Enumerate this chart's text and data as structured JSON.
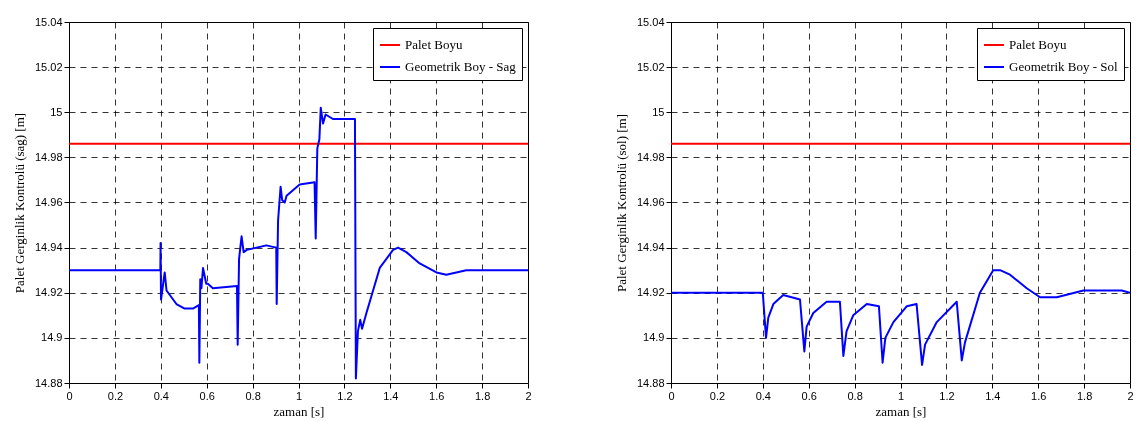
{
  "chart_data": [
    {
      "type": "line",
      "xlabel": "zaman [s]",
      "ylabel": "Palet Gerginlik Kontrolü (sag) [m]",
      "xlim": [
        0,
        2
      ],
      "ylim": [
        14.88,
        15.04
      ],
      "xticks": [
        0,
        0.2,
        0.4,
        0.6,
        0.8,
        1,
        1.2,
        1.4,
        1.6,
        1.8,
        2
      ],
      "yticks": [
        14.88,
        14.9,
        14.92,
        14.94,
        14.96,
        14.98,
        15,
        15.02,
        15.04
      ],
      "grid": true,
      "legend": "top right",
      "series": [
        {
          "name": "Palet Boyu",
          "color": "#ff0000",
          "x": [
            0,
            2
          ],
          "values": [
            14.986,
            14.986
          ]
        },
        {
          "name": "Geometrik Boy - Sag",
          "color": "#0000ff",
          "x": [
            0,
            0.398,
            0.399,
            0.401,
            0.405,
            0.417,
            0.425,
            0.468,
            0.504,
            0.54,
            0.566,
            0.568,
            0.572,
            0.577,
            0.584,
            0.588,
            0.598,
            0.605,
            0.627,
            0.732,
            0.735,
            0.741,
            0.752,
            0.761,
            0.775,
            0.86,
            0.903,
            0.905,
            0.911,
            0.922,
            0.929,
            0.94,
            0.948,
            1.005,
            1.07,
            1.075,
            1.082,
            1.091,
            1.097,
            1.107,
            1.118,
            1.15,
            1.246,
            1.25,
            1.259,
            1.269,
            1.277,
            1.296,
            1.354,
            1.412,
            1.434,
            1.47,
            1.528,
            1.601,
            1.644,
            1.731,
            1.804,
            1.964,
            2
          ],
          "values": [
            14.93,
            14.93,
            14.942,
            14.917,
            14.92,
            14.929,
            14.921,
            14.915,
            14.913,
            14.913,
            14.9145,
            14.889,
            14.926,
            14.922,
            14.931,
            14.929,
            14.924,
            14.924,
            14.922,
            14.923,
            14.897,
            14.935,
            14.945,
            14.938,
            14.939,
            14.941,
            14.94,
            14.915,
            14.952,
            14.967,
            14.961,
            14.96,
            14.963,
            14.968,
            14.969,
            14.944,
            14.984,
            14.988,
            15.002,
            14.995,
            14.999,
            14.997,
            14.997,
            14.882,
            14.903,
            14.908,
            14.904,
            14.911,
            14.931,
            14.939,
            14.94,
            14.938,
            14.933,
            14.929,
            14.928,
            14.93,
            14.93,
            14.93,
            14.93
          ]
        }
      ]
    },
    {
      "type": "line",
      "xlabel": "zaman [s]",
      "ylabel": "Palet Gerginlik Kontrolü (sol) [m]",
      "xlim": [
        0,
        2
      ],
      "ylim": [
        14.88,
        15.04
      ],
      "xticks": [
        0,
        0.2,
        0.4,
        0.6,
        0.8,
        1,
        1.2,
        1.4,
        1.6,
        1.8,
        2
      ],
      "yticks": [
        14.88,
        14.9,
        14.92,
        14.94,
        14.96,
        14.98,
        15,
        15.02,
        15.04
      ],
      "grid": true,
      "legend": "top right",
      "series": [
        {
          "name": "Palet Boyu",
          "color": "#ff0000",
          "x": [
            0,
            2
          ],
          "values": [
            14.986,
            14.986
          ]
        },
        {
          "name": "Geometrik Boy - Sol",
          "color": "#0000ff",
          "x": [
            0,
            0.4,
            0.414,
            0.424,
            0.446,
            0.489,
            0.562,
            0.581,
            0.591,
            0.62,
            0.678,
            0.736,
            0.751,
            0.765,
            0.794,
            0.853,
            0.906,
            0.922,
            0.934,
            0.969,
            1.027,
            1.07,
            1.094,
            1.107,
            1.158,
            1.245,
            1.267,
            1.281,
            1.346,
            1.404,
            1.434,
            1.477,
            1.55,
            1.608,
            1.681,
            1.797,
            1.964,
            2
          ],
          "values": [
            14.92,
            14.92,
            14.9,
            14.909,
            14.915,
            14.919,
            14.917,
            14.894,
            14.905,
            14.911,
            14.916,
            14.916,
            14.892,
            14.903,
            14.91,
            14.915,
            14.914,
            14.889,
            14.9,
            14.907,
            14.914,
            14.915,
            14.888,
            14.897,
            14.907,
            14.916,
            14.89,
            14.898,
            14.92,
            14.93,
            14.93,
            14.928,
            14.922,
            14.918,
            14.918,
            14.921,
            14.921,
            14.92
          ]
        }
      ]
    }
  ]
}
